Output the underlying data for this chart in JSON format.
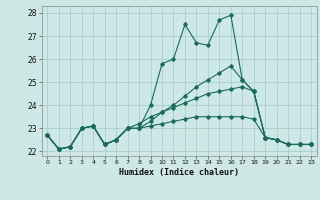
{
  "title": "",
  "xlabel": "Humidex (Indice chaleur)",
  "ylabel": "",
  "background_color": "#cde8e5",
  "grid_color": "#a8cece",
  "line_color": "#1a6b5a",
  "xlim": [
    -0.5,
    23.5
  ],
  "ylim": [
    21.8,
    28.3
  ],
  "yticks": [
    22,
    23,
    24,
    25,
    26,
    27,
    28
  ],
  "xticks": [
    0,
    1,
    2,
    3,
    4,
    5,
    6,
    7,
    8,
    9,
    10,
    11,
    12,
    13,
    14,
    15,
    16,
    17,
    18,
    19,
    20,
    21,
    22,
    23
  ],
  "line1_x": [
    0,
    1,
    2,
    3,
    4,
    5,
    6,
    7,
    8,
    9,
    10,
    11,
    12,
    13,
    14,
    15,
    16,
    17,
    18,
    19,
    20,
    21,
    22,
    23
  ],
  "line1_y": [
    22.7,
    22.1,
    22.2,
    23.0,
    23.1,
    22.3,
    22.5,
    23.0,
    23.0,
    24.0,
    25.8,
    26.0,
    27.5,
    26.7,
    26.6,
    27.7,
    27.9,
    25.1,
    24.6,
    22.6,
    22.5,
    22.3,
    22.3,
    22.3
  ],
  "line2_x": [
    0,
    1,
    2,
    3,
    4,
    5,
    6,
    7,
    8,
    9,
    10,
    11,
    12,
    13,
    14,
    15,
    16,
    17,
    18,
    19,
    20,
    21,
    22,
    23
  ],
  "line2_y": [
    22.7,
    22.1,
    22.2,
    23.0,
    23.1,
    22.3,
    22.5,
    23.0,
    23.0,
    23.3,
    23.7,
    24.0,
    24.4,
    24.8,
    25.1,
    25.4,
    25.7,
    25.1,
    24.6,
    22.6,
    22.5,
    22.3,
    22.3,
    22.3
  ],
  "line3_x": [
    0,
    1,
    2,
    3,
    4,
    5,
    6,
    7,
    8,
    9,
    10,
    11,
    12,
    13,
    14,
    15,
    16,
    17,
    18,
    19,
    20,
    21,
    22,
    23
  ],
  "line3_y": [
    22.7,
    22.1,
    22.2,
    23.0,
    23.1,
    22.3,
    22.5,
    23.0,
    23.2,
    23.5,
    23.7,
    23.9,
    24.1,
    24.3,
    24.5,
    24.6,
    24.7,
    24.8,
    24.6,
    22.6,
    22.5,
    22.3,
    22.3,
    22.3
  ],
  "line4_x": [
    0,
    1,
    2,
    3,
    4,
    5,
    6,
    7,
    8,
    9,
    10,
    11,
    12,
    13,
    14,
    15,
    16,
    17,
    18,
    19,
    20,
    21,
    22,
    23
  ],
  "line4_y": [
    22.7,
    22.1,
    22.2,
    23.0,
    23.1,
    22.3,
    22.5,
    23.0,
    23.0,
    23.1,
    23.2,
    23.3,
    23.4,
    23.5,
    23.5,
    23.5,
    23.5,
    23.5,
    23.4,
    22.6,
    22.5,
    22.3,
    22.3,
    22.3
  ]
}
